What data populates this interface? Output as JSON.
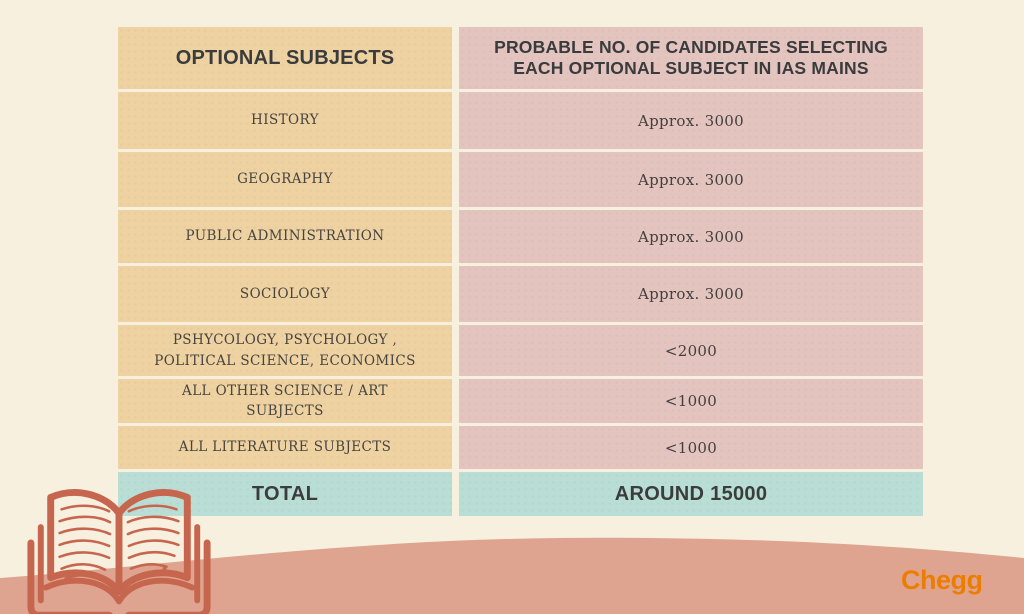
{
  "table": {
    "header": {
      "col1": "OPTIONAL SUBJECTS",
      "col2": "PROBABLE NO. OF CANDIDATES SELECTING EACH OPTIONAL SUBJECT IN IAS MAINS"
    },
    "rows": [
      {
        "subject": "HISTORY",
        "candidates": "Approx. 3000"
      },
      {
        "subject": "GEOGRAPHY",
        "candidates": "Approx. 3000"
      },
      {
        "subject": "PUBLIC ADMINISTRATION",
        "candidates": "Approx. 3000"
      },
      {
        "subject": "SOCIOLOGY",
        "candidates": "Approx. 3000"
      },
      {
        "subject": "PSHYCOLOGY, PSYCHOLOGY , POLITICAL SCIENCE, ECONOMICS",
        "candidates": "<2000"
      },
      {
        "subject": "ALL OTHER SCIENCE / ART SUBJECTS",
        "candidates": "<1000"
      },
      {
        "subject": "ALL LITERATURE SUBJECTS",
        "candidates": "<1000"
      }
    ],
    "total": {
      "label": "TOTAL",
      "value": "AROUND 15000"
    }
  },
  "chart_data": {
    "type": "table",
    "title": "Probable no. of candidates selecting each optional subject in IAS Mains",
    "columns": [
      "OPTIONAL SUBJECTS",
      "PROBABLE NO. OF CANDIDATES SELECTING EACH OPTIONAL SUBJECT IN IAS MAINS"
    ],
    "categories": [
      "HISTORY",
      "GEOGRAPHY",
      "PUBLIC ADMINISTRATION",
      "SOCIOLOGY",
      "PSHYCOLOGY, PSYCHOLOGY , POLITICAL SCIENCE, ECONOMICS",
      "ALL OTHER SCIENCE / ART SUBJECTS",
      "ALL LITERATURE SUBJECTS"
    ],
    "values": [
      "Approx. 3000",
      "Approx. 3000",
      "Approx. 3000",
      "Approx. 3000",
      "<2000",
      "<1000",
      "<1000"
    ],
    "total": "AROUND 15000"
  },
  "branding": {
    "logo_text": "Chegg"
  },
  "icons": {
    "book": "open-book-line-art"
  },
  "colors": {
    "background": "#f7f0df",
    "subject_cell": "#eed2a2",
    "value_cell": "#e4c4bf",
    "total_cell": "#b9ded5",
    "hill": "#dfa48f",
    "book_stroke": "#c7664e",
    "logo_orange": "#ED7D00",
    "text_dark": "#393b3d"
  }
}
